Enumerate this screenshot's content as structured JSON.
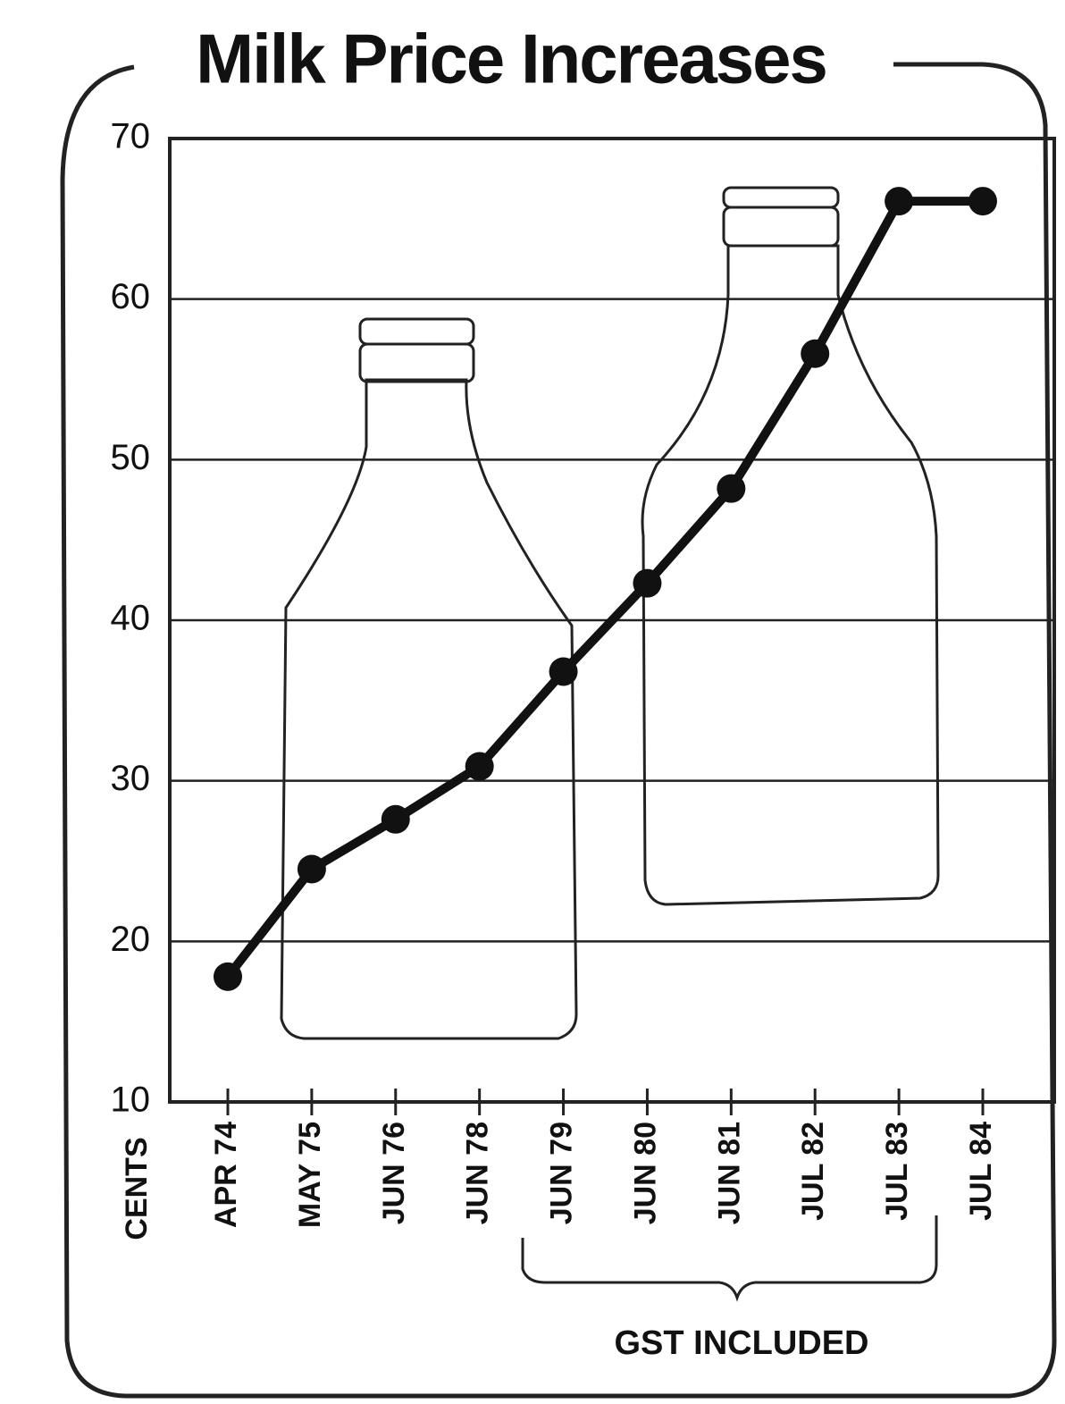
{
  "chart_data": {
    "type": "line",
    "title": "Milk Price Increases",
    "y_label": "CENTS",
    "annotation": "GST INCLUDED",
    "categories": [
      "APR 74",
      "MAY 75",
      "JUN 76",
      "JUN 78",
      "JUN 79",
      "JUN 80",
      "JUN 81",
      "JUL 82",
      "JUL 83",
      "JUL 84"
    ],
    "values": [
      17.8,
      24.5,
      27.6,
      30.9,
      36.8,
      42.3,
      48.2,
      56.6,
      66.1,
      66.1
    ],
    "color": "#111111",
    "ylim": [
      10,
      70
    ],
    "yticks": [
      10,
      20,
      30,
      40,
      50,
      60,
      70
    ],
    "grid": true
  }
}
